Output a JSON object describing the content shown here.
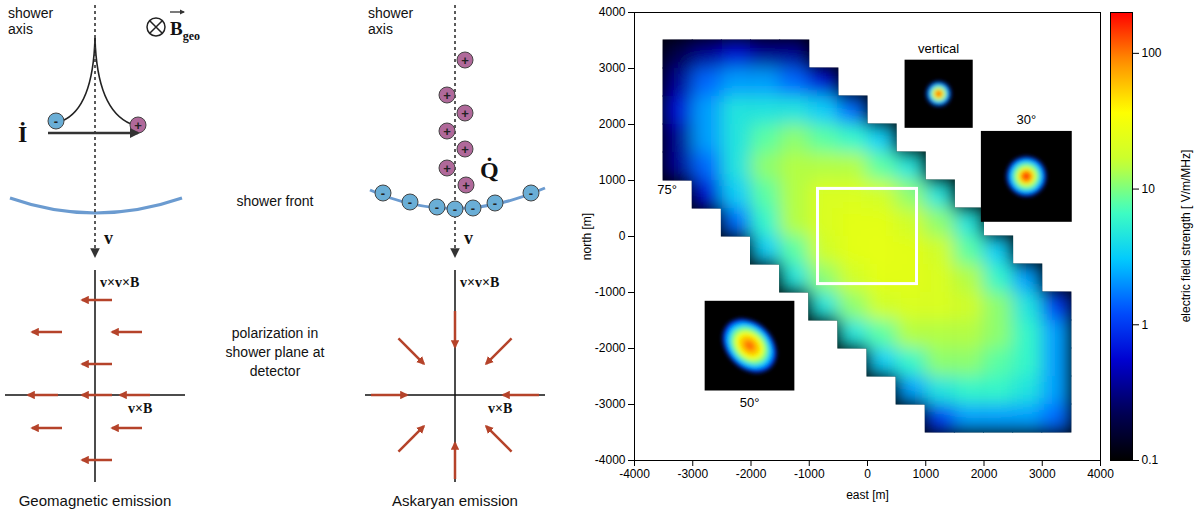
{
  "diagrams": {
    "geomagnetic": {
      "axis_label": "shower axis",
      "field_label": "B",
      "field_subscript": "geo",
      "current_label": "İ",
      "velocity_label": "v",
      "axis_labels": [
        "v×v×B",
        "v×B"
      ],
      "caption": "Geomagnetic emission"
    },
    "askaryan": {
      "axis_label": "shower axis",
      "charge_label": "Q̇",
      "velocity_label": "v",
      "axis_labels": [
        "v×v×B",
        "v×B"
      ],
      "caption": "Askaryan emission"
    },
    "center_labels": {
      "front": "shower front",
      "polarization": "polarization in shower plane at detector"
    },
    "charges": {
      "negative": "-",
      "positive": "+"
    }
  },
  "chart_data": {
    "type": "heatmap",
    "xlabel": "east [m]",
    "ylabel": "north [m]",
    "xlim": [
      -4000,
      4000
    ],
    "xticks": [
      -4000,
      -3000,
      -2000,
      -1000,
      0,
      1000,
      2000,
      3000,
      4000
    ],
    "ylim": [
      -4000,
      4000
    ],
    "yticks": [
      -4000,
      -3000,
      -2000,
      -1000,
      0,
      1000,
      2000,
      3000,
      4000
    ],
    "east": [
      -3250,
      -2750,
      -2250,
      -1750,
      -1250,
      -750,
      -250,
      250,
      750,
      1250,
      1750,
      2250,
      2750,
      3250
    ],
    "north": [
      3250,
      2750,
      2250,
      1750,
      1250,
      750,
      250,
      -250,
      -750,
      -1250,
      -1750,
      -2250,
      -2750,
      -3250
    ],
    "cells": [
      [
        0.2,
        0.35,
        0.6,
        0.35,
        0.35,
        null,
        null,
        null,
        null,
        null,
        null,
        null,
        null,
        null
      ],
      [
        0.35,
        1.5,
        2.2,
        2.2,
        1.5,
        0.6,
        null,
        null,
        null,
        null,
        null,
        null,
        null,
        null
      ],
      [
        0.6,
        2.2,
        4.5,
        4.5,
        4.5,
        3.2,
        1.5,
        null,
        null,
        null,
        null,
        null,
        null,
        null
      ],
      [
        0.35,
        2.2,
        4.5,
        8,
        11,
        8,
        6,
        3.2,
        null,
        null,
        null,
        null,
        null,
        null
      ],
      [
        0.35,
        1.5,
        4.5,
        11,
        14,
        14,
        14,
        8,
        4.5,
        null,
        null,
        null,
        null,
        null
      ],
      [
        null,
        0.6,
        3.2,
        8,
        14,
        21,
        21,
        18,
        11,
        4.5,
        null,
        null,
        null,
        null
      ],
      [
        null,
        null,
        1.5,
        6,
        14,
        21,
        24,
        24,
        18,
        11,
        4.5,
        null,
        null,
        null
      ],
      [
        null,
        null,
        null,
        3.2,
        8,
        18,
        24,
        25,
        24,
        18,
        8,
        3.2,
        null,
        null
      ],
      [
        null,
        null,
        null,
        null,
        4.5,
        11,
        18,
        24,
        24,
        21,
        14,
        6,
        2.2,
        null
      ],
      [
        null,
        null,
        null,
        null,
        null,
        4.5,
        11,
        18,
        21,
        21,
        18,
        11,
        4.5,
        1
      ],
      [
        null,
        null,
        null,
        null,
        null,
        null,
        4.5,
        8,
        14,
        14,
        14,
        11,
        6,
        2.2
      ],
      [
        null,
        null,
        null,
        null,
        null,
        null,
        null,
        3.2,
        6,
        11,
        11,
        8,
        6,
        2.2
      ],
      [
        null,
        null,
        null,
        null,
        null,
        null,
        null,
        null,
        2.2,
        4.5,
        6,
        6,
        4.5,
        2.2
      ],
      [
        null,
        null,
        null,
        null,
        null,
        null,
        null,
        null,
        null,
        1,
        2.2,
        2.2,
        2.2,
        1.5
      ]
    ],
    "colorbar": {
      "label": "electric field strength [ V/m/MHz]",
      "lim": [
        0.1,
        200
      ],
      "ticks": [
        0.1,
        1,
        10,
        100
      ],
      "log": true
    },
    "annotation": "75°",
    "highlight_box": {
      "east": [
        -850,
        850
      ],
      "north": [
        -850,
        850
      ]
    },
    "insets": [
      {
        "label": "vertical",
        "axis_ratio": 1,
        "rings": [
          {
            "r": 210,
            "value": 1
          },
          {
            "r": 170,
            "value": 3
          },
          {
            "r": 130,
            "value": 10
          },
          {
            "r": 100,
            "value": 30
          },
          {
            "r": 65,
            "value": 80
          },
          {
            "r": 35,
            "value": 150
          }
        ]
      },
      {
        "label": "30°",
        "axis_ratio": 1,
        "rings": [
          {
            "r": 340,
            "value": 1
          },
          {
            "r": 280,
            "value": 3
          },
          {
            "r": 220,
            "value": 10
          },
          {
            "r": 160,
            "value": 30
          },
          {
            "r": 110,
            "value": 80
          },
          {
            "r": 60,
            "value": 150
          }
        ]
      },
      {
        "label": "50°",
        "axis_ratio": 0.75,
        "rings": [
          {
            "r": 520,
            "value": 1
          },
          {
            "r": 440,
            "value": 3
          },
          {
            "r": 360,
            "value": 10
          },
          {
            "r": 280,
            "value": 30
          },
          {
            "r": 190,
            "value": 60
          },
          {
            "r": 100,
            "value": 100
          }
        ]
      }
    ]
  }
}
